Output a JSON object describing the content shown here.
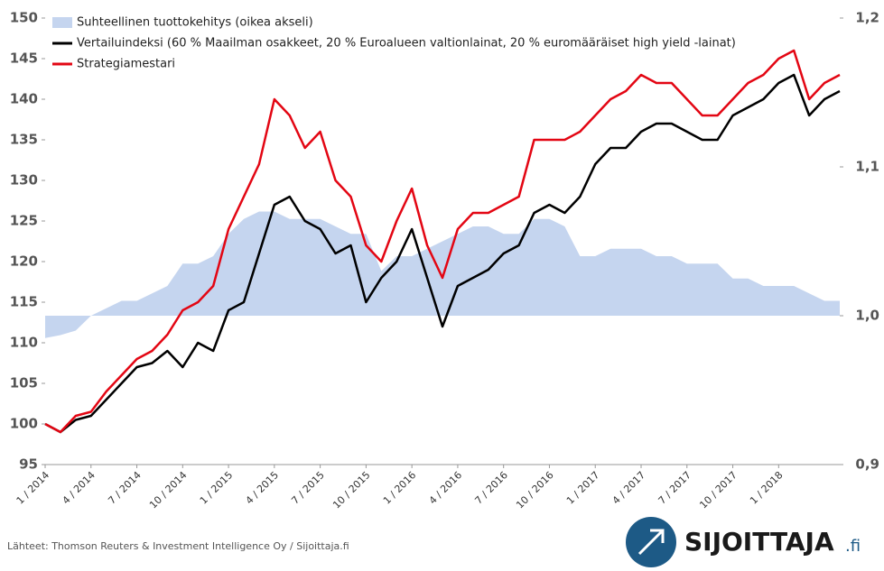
{
  "chart_data": {
    "type": "line",
    "categories": [
      "1 / 2014",
      null,
      null,
      "4 / 2014",
      null,
      null,
      "7 / 2014",
      null,
      null,
      "10 / 2014",
      null,
      null,
      "1 / 2015",
      null,
      null,
      "4 / 2015",
      null,
      null,
      "7 / 2015",
      null,
      null,
      "10 / 2015",
      null,
      null,
      "1 / 2016",
      null,
      null,
      "4 / 2016",
      null,
      null,
      "7 / 2016",
      null,
      null,
      "10 / 2016",
      null,
      null,
      "1 / 2017",
      null,
      null,
      "4 / 2017",
      null,
      null,
      "7 / 2017",
      null,
      null,
      "10 / 2017",
      null,
      null,
      "1 / 2018",
      null,
      null,
      null,
      null
    ],
    "series": [
      {
        "name": "Suhteellinen tuottokehitys (oikea akseli)",
        "type": "area",
        "axis": "y2",
        "baseline": 1,
        "color": "#c5d5ef",
        "values": [
          0.985,
          0.987,
          0.99,
          1.0,
          1.005,
          1.01,
          1.01,
          1.015,
          1.02,
          1.035,
          1.035,
          1.04,
          1.055,
          1.065,
          1.07,
          1.07,
          1.065,
          1.065,
          1.065,
          1.06,
          1.055,
          1.055,
          1.03,
          1.04,
          1.04,
          1.045,
          1.05,
          1.055,
          1.06,
          1.06,
          1.055,
          1.055,
          1.065,
          1.065,
          1.06,
          1.04,
          1.04,
          1.045,
          1.045,
          1.045,
          1.04,
          1.04,
          1.035,
          1.035,
          1.035,
          1.025,
          1.025,
          1.02,
          1.02,
          1.02,
          1.015,
          1.01,
          1.01
        ]
      },
      {
        "name": "Vertailuindeksi (60 % Maailman osakkeet, 20 % Euroalueen valtionlainat, 20 % euromääräiset high yield -lainat)",
        "color": "#000000",
        "values": [
          100,
          99,
          100.5,
          101,
          103,
          105,
          107,
          107.5,
          109,
          107,
          110,
          109,
          114,
          115,
          121,
          127,
          128,
          125,
          124,
          121,
          122,
          115,
          118,
          120,
          124,
          118,
          112,
          117,
          118,
          119,
          121,
          122,
          126,
          127,
          126,
          128,
          132,
          134,
          134,
          136,
          137,
          137,
          136,
          135,
          135,
          138,
          139,
          140,
          142,
          143,
          138,
          140,
          141
        ]
      },
      {
        "name": "Strategiamestari",
        "color": "#e30613",
        "values": [
          100,
          99,
          101,
          101.5,
          104,
          106,
          108,
          109,
          111,
          114,
          115,
          117,
          124,
          128,
          132,
          140,
          138,
          134,
          136,
          130,
          128,
          122,
          120,
          125,
          129,
          122,
          118,
          124,
          126,
          126,
          127,
          128,
          135,
          135,
          135,
          136,
          138,
          140,
          141,
          143,
          142,
          142,
          140,
          138,
          138,
          140,
          142,
          143,
          145,
          146,
          140,
          142,
          143
        ]
      }
    ],
    "ylim": [
      95,
      150
    ],
    "yticks": [
      95,
      100,
      105,
      110,
      115,
      120,
      125,
      130,
      135,
      140,
      145,
      150
    ],
    "y2lim": [
      0.9,
      1.2
    ],
    "y2ticks": [
      {
        "value": 0.9,
        "label": "0,9"
      },
      {
        "value": 1.0,
        "label": "1,0"
      },
      {
        "value": 1.1,
        "label": "1,1"
      },
      {
        "value": 1.2,
        "label": "1,2"
      }
    ],
    "legend": "upper left",
    "grid": false
  },
  "source": "Lähteet: Thomson Reuters & Investment Intelligence Oy / Sijoittaja.fi",
  "logo": {
    "name": "SIJOITTAJA",
    "suffix": ".fi"
  }
}
